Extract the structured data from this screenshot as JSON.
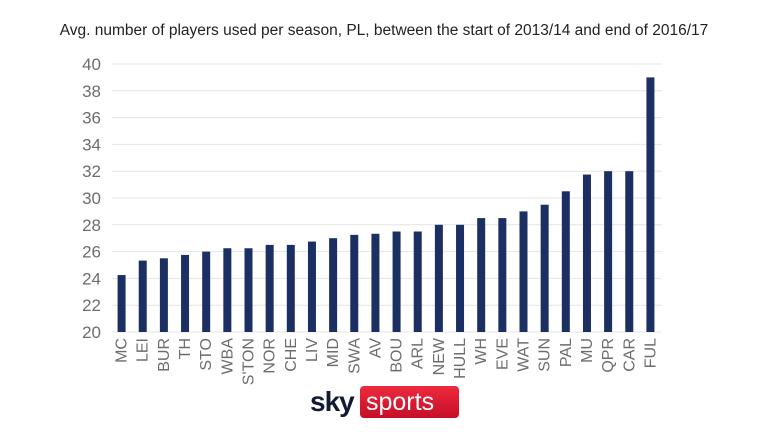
{
  "chart_data": {
    "type": "bar",
    "title": "Avg. number of players used per season, PL, between the start of 2013/14 and end of 2016/17",
    "xlabel": "",
    "ylabel": "",
    "ylim": [
      20,
      40
    ],
    "yticks": [
      20,
      22,
      24,
      26,
      28,
      30,
      32,
      34,
      36,
      38,
      40
    ],
    "grid": true,
    "bar_color": "#1b2f63",
    "categories": [
      "MC",
      "LEI",
      "BUR",
      "TH",
      "STO",
      "WBA",
      "S'TON",
      "NOR",
      "CHE",
      "LIV",
      "MID",
      "SWA",
      "AV",
      "BOU",
      "ARL",
      "NEW",
      "HULL",
      "WH",
      "EVE",
      "WAT",
      "SUN",
      "PAL",
      "MU",
      "QPR",
      "CAR",
      "FUL"
    ],
    "values": [
      24.25,
      25.33,
      25.5,
      25.75,
      26.0,
      26.25,
      26.25,
      26.5,
      26.5,
      26.75,
      27.0,
      27.25,
      27.33,
      27.5,
      27.5,
      28.0,
      28.0,
      28.5,
      28.5,
      29.0,
      29.5,
      30.5,
      31.75,
      32.0,
      32.0,
      39.0
    ]
  },
  "brand": {
    "logo_word_1": "sky",
    "logo_word_2": "sports",
    "logo_red": "#d9132e",
    "logo_dark": "#121a33"
  }
}
